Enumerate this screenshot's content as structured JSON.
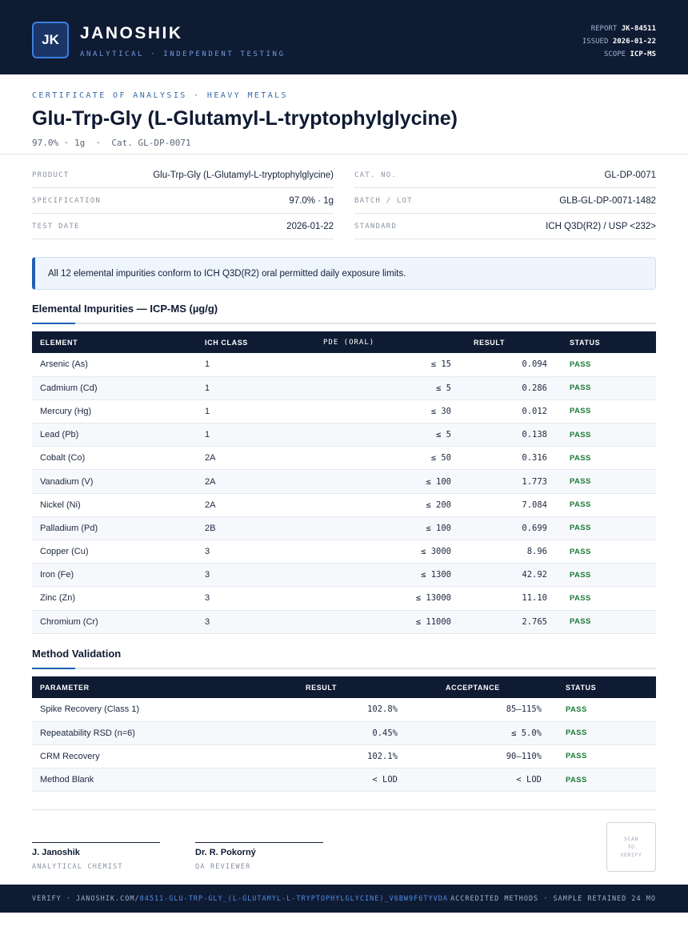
{
  "header": {
    "logo_text": "JK",
    "brand": "JANOSHIK",
    "brand_sub": "ANALYTICAL · INDEPENDENT TESTING",
    "meta": [
      {
        "label": "REPORT",
        "value": "JK-84511"
      },
      {
        "label": "ISSUED",
        "value": "2026-01-22"
      },
      {
        "label": "SCOPE",
        "value": "ICP-MS"
      }
    ]
  },
  "certificate": {
    "label": "CERTIFICATE OF ANALYSIS · HEAVY METALS",
    "title": "Glu-Trp-Gly (L-Glutamyl-L-tryptophylglycine)",
    "subtitle": "97.0% · 1g  ·  Cat. GL-DP-0071"
  },
  "info": {
    "left": [
      {
        "key": "PRODUCT",
        "value": "Glu-Trp-Gly (L-Glutamyl-L-tryptophylglycine)"
      },
      {
        "key": "SPECIFICATION",
        "value": "97.0% · 1g"
      },
      {
        "key": "TEST DATE",
        "value": "2026-01-22"
      }
    ],
    "right": [
      {
        "key": "CAT. NO.",
        "value": "GL-DP-0071"
      },
      {
        "key": "BATCH / LOT",
        "value": "GLB-GL-DP-0071-1482"
      },
      {
        "key": "STANDARD",
        "value": "ICH Q3D(R2) / USP <232>"
      }
    ]
  },
  "notice": "All 12 elemental impurities conform to ICH Q3D(R2) oral permitted daily exposure limits.",
  "impurities": {
    "title": "Elemental Impurities — ICP-MS (µg/g)",
    "headers": [
      "ELEMENT",
      "ICH CLASS",
      "PDE (ORAL)",
      "RESULT",
      "STATUS"
    ],
    "rows": [
      {
        "element": "Arsenic (As)",
        "class": "1",
        "pde": "≤ 15",
        "result": "0.094",
        "status": "PASS"
      },
      {
        "element": "Cadmium (Cd)",
        "class": "1",
        "pde": "≤ 5",
        "result": "0.286",
        "status": "PASS"
      },
      {
        "element": "Mercury (Hg)",
        "class": "1",
        "pde": "≤ 30",
        "result": "0.012",
        "status": "PASS"
      },
      {
        "element": "Lead (Pb)",
        "class": "1",
        "pde": "≤ 5",
        "result": "0.138",
        "status": "PASS"
      },
      {
        "element": "Cobalt (Co)",
        "class": "2A",
        "pde": "≤ 50",
        "result": "0.316",
        "status": "PASS"
      },
      {
        "element": "Vanadium (V)",
        "class": "2A",
        "pde": "≤ 100",
        "result": "1.773",
        "status": "PASS"
      },
      {
        "element": "Nickel (Ni)",
        "class": "2A",
        "pde": "≤ 200",
        "result": "7.084",
        "status": "PASS"
      },
      {
        "element": "Palladium (Pd)",
        "class": "2B",
        "pde": "≤ 100",
        "result": "0.699",
        "status": "PASS"
      },
      {
        "element": "Copper (Cu)",
        "class": "3",
        "pde": "≤ 3000",
        "result": "8.96",
        "status": "PASS"
      },
      {
        "element": "Iron (Fe)",
        "class": "3",
        "pde": "≤ 1300",
        "result": "42.92",
        "status": "PASS"
      },
      {
        "element": "Zinc (Zn)",
        "class": "3",
        "pde": "≤ 13000",
        "result": "11.10",
        "status": "PASS"
      },
      {
        "element": "Chromium (Cr)",
        "class": "3",
        "pde": "≤ 11000",
        "result": "2.765",
        "status": "PASS"
      }
    ]
  },
  "validation": {
    "title": "Method Validation",
    "headers": [
      "PARAMETER",
      "RESULT",
      "ACCEPTANCE",
      "STATUS"
    ],
    "rows": [
      {
        "parameter": "Spike Recovery (Class 1)",
        "result": "102.8%",
        "acceptance": "85–115%",
        "status": "PASS"
      },
      {
        "parameter": "Repeatability RSD (n=6)",
        "result": "0.45%",
        "acceptance": "≤ 5.0%",
        "status": "PASS"
      },
      {
        "parameter": "CRM Recovery",
        "result": "102.1%",
        "acceptance": "90–110%",
        "status": "PASS"
      },
      {
        "parameter": "Method Blank",
        "result": "< LOD",
        "acceptance": "< LOD",
        "status": "PASS"
      }
    ]
  },
  "signatures": [
    {
      "name": "J. Janoshik",
      "role": "ANALYTICAL CHEMIST"
    },
    {
      "name": "Dr. R. Pokorný",
      "role": "QA REVIEWER"
    }
  ],
  "qr": {
    "line1": "SCAN",
    "line2": "TO",
    "line3": "VERIFY"
  },
  "footer": {
    "verify_prefix": "VERIFY · JANOSHIK.COM/",
    "verify_path": "84511-GLU-TRP-GLY_(L-GLUTAMYL-L-TRYPTOPHYLGLYCINE)_V6BW9F6TYVDA",
    "right": "ACCREDITED METHODS · SAMPLE RETAINED 24 MO"
  },
  "colors": {
    "navy": "#0f1b33",
    "accent": "#1f5fb4",
    "pass": "#1d7a3a"
  }
}
